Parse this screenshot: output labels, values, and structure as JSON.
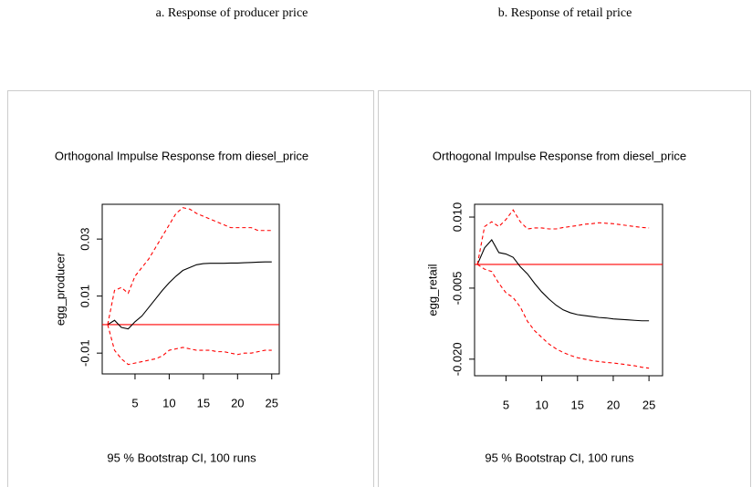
{
  "chart_data": [
    {
      "type": "line",
      "caption": "a. Response of producer price",
      "title": "Orthogonal Impulse Response from diesel_price",
      "ylabel": "egg_producer",
      "xlabel": "95 % Bootstrap CI, 100 runs",
      "x": [
        1,
        2,
        3,
        4,
        5,
        6,
        7,
        8,
        9,
        10,
        11,
        12,
        13,
        14,
        15,
        16,
        17,
        18,
        19,
        20,
        21,
        22,
        23,
        24,
        25
      ],
      "xlim": [
        0.2,
        26.1
      ],
      "xticks": [
        5,
        10,
        15,
        20,
        25
      ],
      "ylim": [
        -0.0173,
        0.0422
      ],
      "yticks": [
        -0.01,
        0.01,
        0.03
      ],
      "reference_line": {
        "value": 0,
        "color": "#ff0000"
      },
      "series": [
        {
          "color": "#000000",
          "line_style": "solid",
          "values": [
            0,
            0.0015,
            -0.001,
            -0.0015,
            0.001,
            0.003,
            0.006,
            0.009,
            0.012,
            0.0147,
            0.017,
            0.019,
            0.02,
            0.021,
            0.0214,
            0.0215,
            0.0215,
            0.0215,
            0.0216,
            0.0216,
            0.0217,
            0.0218,
            0.0219,
            0.022,
            0.022
          ]
        },
        {
          "color": "#ff0000",
          "line_style": "dashed",
          "values": [
            0,
            0.012,
            0.013,
            0.011,
            0.017,
            0.02,
            0.023,
            0.027,
            0.031,
            0.035,
            0.039,
            0.041,
            0.0405,
            0.039,
            0.038,
            0.037,
            0.036,
            0.035,
            0.034,
            0.034,
            0.034,
            0.034,
            0.033,
            0.033,
            0.033
          ]
        },
        {
          "color": "#ff0000",
          "line_style": "dashed",
          "values": [
            0,
            -0.009,
            -0.012,
            -0.014,
            -0.0135,
            -0.013,
            -0.0125,
            -0.012,
            -0.011,
            -0.009,
            -0.0085,
            -0.008,
            -0.0085,
            -0.009,
            -0.009,
            -0.009,
            -0.0095,
            -0.0095,
            -0.01,
            -0.0105,
            -0.01,
            -0.01,
            -0.0095,
            -0.009,
            -0.009
          ]
        }
      ]
    },
    {
      "type": "line",
      "caption": "b. Response of retail price",
      "title": "Orthogonal Impulse Response from diesel_price",
      "ylabel": "egg_retail",
      "xlabel": "95 % Bootstrap CI, 100 runs",
      "x": [
        1,
        2,
        3,
        4,
        5,
        6,
        7,
        8,
        9,
        10,
        11,
        12,
        13,
        14,
        15,
        16,
        17,
        18,
        19,
        20,
        21,
        22,
        23,
        24,
        25
      ],
      "xlim": [
        0.6,
        26.9
      ],
      "xticks": [
        5,
        10,
        15,
        20,
        25
      ],
      "ylim": [
        -0.0235,
        0.0127
      ],
      "yticks": [
        {
          "value": -0.02,
          "label": "-0.020"
        },
        {
          "value": -0.005,
          "label": "-0.005"
        },
        {
          "value": 0.01,
          "label": "0.010"
        }
      ],
      "reference_line": {
        "value": 0,
        "color": "#ff0000"
      },
      "series": [
        {
          "color": "#000000",
          "line_style": "solid",
          "values": [
            0,
            0.0035,
            0.0052,
            0.0025,
            0.0022,
            0.0015,
            -0.0005,
            -0.002,
            -0.004,
            -0.0058,
            -0.0073,
            -0.0086,
            -0.0096,
            -0.0102,
            -0.0106,
            -0.0108,
            -0.011,
            -0.0112,
            -0.0113,
            -0.0115,
            -0.0116,
            -0.0117,
            -0.0118,
            -0.0119,
            -0.0119
          ]
        },
        {
          "color": "#ff0000",
          "line_style": "dashed",
          "values": [
            0,
            0.008,
            0.009,
            0.008,
            0.0095,
            0.0115,
            0.009,
            0.0075,
            0.0077,
            0.0077,
            0.0075,
            0.0075,
            0.0078,
            0.008,
            0.0082,
            0.0085,
            0.0086,
            0.0088,
            0.0087,
            0.0086,
            0.0084,
            0.0082,
            0.008,
            0.0078,
            0.0077
          ]
        },
        {
          "color": "#ff0000",
          "line_style": "dashed",
          "values": [
            0,
            -0.001,
            -0.0015,
            -0.004,
            -0.006,
            -0.007,
            -0.009,
            -0.012,
            -0.014,
            -0.0154,
            -0.0168,
            -0.0178,
            -0.0186,
            -0.0192,
            -0.0197,
            -0.02,
            -0.0203,
            -0.0205,
            -0.0207,
            -0.0208,
            -0.021,
            -0.0212,
            -0.0214,
            -0.0217,
            -0.0219
          ]
        }
      ]
    }
  ]
}
